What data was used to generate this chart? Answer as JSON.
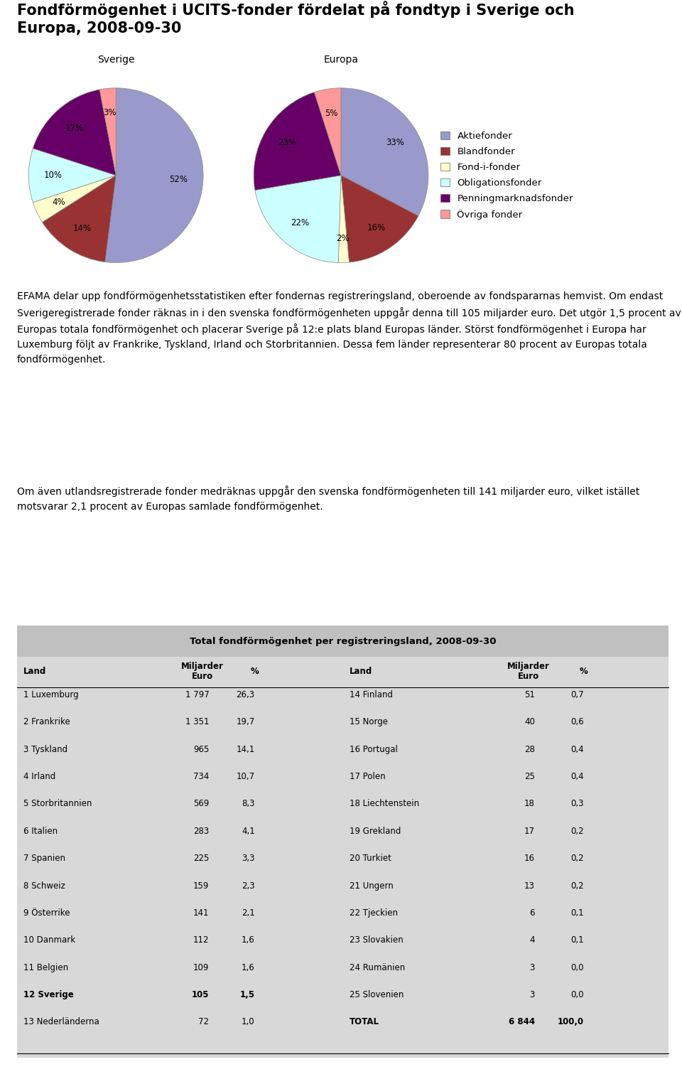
{
  "title_line1": "Fondförmögenhet i UCITS-fonder fördelat på fondtyp i Sverige och",
  "title_line2": "Europa, 2008-09-30",
  "pie_labels": [
    "Aktiefonder",
    "Blandfonder",
    "Fond-i-fonder",
    "Obligationsfonder",
    "Penningmarknadsfonder",
    "Övriga fonder"
  ],
  "pie_colors": [
    "#9999CC",
    "#993333",
    "#FFFFCC",
    "#CCFFFF",
    "#660066",
    "#FF9999"
  ],
  "sverige_values": [
    52,
    14,
    4,
    10,
    17,
    3
  ],
  "europa_values": [
    33,
    16,
    2,
    22,
    23,
    5
  ],
  "paragraph1": "EFAMA delar upp fondförmögenhetsstatistiken efter fondernas registreringsland, oberoende av fondspararnas hemvist. Om endast Sverigeregistrerade fonder räknas in i den svenska fondförmögenheten uppgår denna till 105 miljarder euro. Det utgör 1,5 procent av Europas totala fondförmögenhet och placerar Sverige på 12:e plats bland Europas länder. Störst fondförmögenhet i Europa har Luxemburg följt av Frankrike, Tyskland, Irland och Storbritannien. Dessa fem länder representerar 80 procent av Europas totala fondförmögenhet.",
  "paragraph2": "Om även utlandsregistrerade fonder medräknas uppgår den svenska fondförmögenheten till 141 miljarder euro, vilket istället motsvarar 2,1 procent av Europas samlade fondförmögenhet.",
  "table_title": "Total fondförmögenhet per registreringsland, 2008-09-30",
  "table_left": [
    [
      "1 Luxemburg",
      "1 797",
      "26,3"
    ],
    [
      "2 Frankrike",
      "1 351",
      "19,7"
    ],
    [
      "3 Tyskland",
      "965",
      "14,1"
    ],
    [
      "4 Irland",
      "734",
      "10,7"
    ],
    [
      "5 Storbritannien",
      "569",
      "8,3"
    ],
    [
      "6 Italien",
      "283",
      "4,1"
    ],
    [
      "7 Spanien",
      "225",
      "3,3"
    ],
    [
      "8 Schweiz",
      "159",
      "2,3"
    ],
    [
      "9 Österrike",
      "141",
      "2,1"
    ],
    [
      "10 Danmark",
      "112",
      "1,6"
    ],
    [
      "11 Belgien",
      "109",
      "1,6"
    ],
    [
      "12 Sverige",
      "105",
      "1,5"
    ],
    [
      "13 Nederländerna",
      "72",
      "1,0"
    ]
  ],
  "table_right": [
    [
      "14 Finland",
      "51",
      "0,7"
    ],
    [
      "15 Norge",
      "40",
      "0,6"
    ],
    [
      "16 Portugal",
      "28",
      "0,4"
    ],
    [
      "17 Polen",
      "25",
      "0,4"
    ],
    [
      "18 Liechtenstein",
      "18",
      "0,3"
    ],
    [
      "19 Grekland",
      "17",
      "0,2"
    ],
    [
      "20 Turkiet",
      "16",
      "0,2"
    ],
    [
      "21 Ungern",
      "13",
      "0,2"
    ],
    [
      "22 Tjeckien",
      "6",
      "0,1"
    ],
    [
      "23 Slovakien",
      "4",
      "0,1"
    ],
    [
      "24 Rumänien",
      "3",
      "0,0"
    ],
    [
      "25 Slovenien",
      "3",
      "0,0"
    ],
    [
      "TOTAL",
      "6 844",
      "100,0"
    ]
  ],
  "bold_rows_left": [
    11
  ],
  "bold_rows_right": [
    12
  ],
  "bg_color": "#FFFFFF"
}
